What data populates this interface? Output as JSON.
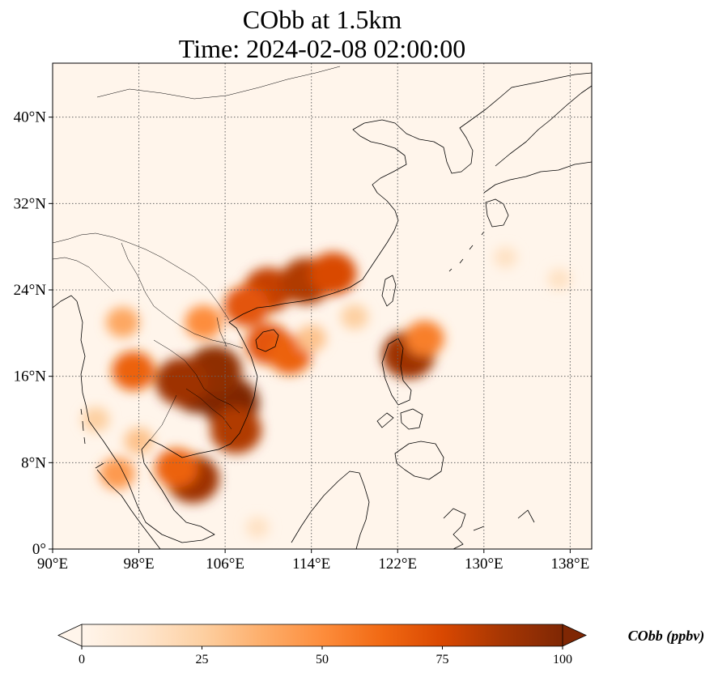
{
  "title": {
    "line1": "CObb at 1.5km",
    "line2": "Time: 2024-02-08 02:00:00"
  },
  "map": {
    "lon_range": [
      90,
      140
    ],
    "lat_range": [
      0,
      45
    ],
    "lon_ticks": [
      {
        "value": 90,
        "label": "90°E"
      },
      {
        "value": 98,
        "label": "98°E"
      },
      {
        "value": 106,
        "label": "106°E"
      },
      {
        "value": 114,
        "label": "114°E"
      },
      {
        "value": 122,
        "label": "122°E"
      },
      {
        "value": 130,
        "label": "130°E"
      },
      {
        "value": 138,
        "label": "138°E"
      }
    ],
    "lat_ticks": [
      {
        "value": 0,
        "label": "0°"
      },
      {
        "value": 8,
        "label": "8°N"
      },
      {
        "value": 16,
        "label": "16°N"
      },
      {
        "value": 24,
        "label": "24°N"
      },
      {
        "value": 32,
        "label": "32°N"
      },
      {
        "value": 40,
        "label": "40°N"
      }
    ],
    "gridlines": true
  },
  "colorbar": {
    "label": "CObb (ppbv)",
    "min": 0,
    "max": 100,
    "extend": "both",
    "ticks": [
      {
        "value": 0,
        "label": "0"
      },
      {
        "value": 25,
        "label": "25"
      },
      {
        "value": 50,
        "label": "50"
      },
      {
        "value": 75,
        "label": "75"
      },
      {
        "value": 100,
        "label": "100"
      }
    ],
    "colormap": [
      "#fff5eb",
      "#fee6ce",
      "#fdd0a2",
      "#fdae6b",
      "#fd8d3c",
      "#f16913",
      "#d94801",
      "#a63603",
      "#7f2704"
    ]
  },
  "plumes": [
    {
      "lon": 103.5,
      "lat": 15.0,
      "value": 100
    },
    {
      "lon": 106.5,
      "lat": 13.5,
      "value": 100
    },
    {
      "lon": 105.0,
      "lat": 16.5,
      "value": 95
    },
    {
      "lon": 102.0,
      "lat": 15.5,
      "value": 90
    },
    {
      "lon": 107.0,
      "lat": 11.0,
      "value": 85
    },
    {
      "lon": 103.0,
      "lat": 6.5,
      "value": 90
    },
    {
      "lon": 101.5,
      "lat": 7.5,
      "value": 65
    },
    {
      "lon": 97.5,
      "lat": 16.5,
      "value": 65
    },
    {
      "lon": 96.0,
      "lat": 7.0,
      "value": 45
    },
    {
      "lon": 98.0,
      "lat": 10.0,
      "value": 30
    },
    {
      "lon": 94.0,
      "lat": 12.0,
      "value": 25
    },
    {
      "lon": 110.0,
      "lat": 24.0,
      "value": 80
    },
    {
      "lon": 113.5,
      "lat": 24.8,
      "value": 85
    },
    {
      "lon": 116.0,
      "lat": 25.5,
      "value": 75
    },
    {
      "lon": 108.0,
      "lat": 22.5,
      "value": 70
    },
    {
      "lon": 110.0,
      "lat": 19.0,
      "value": 70
    },
    {
      "lon": 112.0,
      "lat": 18.0,
      "value": 65
    },
    {
      "lon": 114.0,
      "lat": 19.5,
      "value": 30
    },
    {
      "lon": 123.0,
      "lat": 18.0,
      "value": 90
    },
    {
      "lon": 124.5,
      "lat": 19.5,
      "value": 55
    },
    {
      "lon": 96.5,
      "lat": 21.0,
      "value": 40
    },
    {
      "lon": 104.0,
      "lat": 21.0,
      "value": 50
    },
    {
      "lon": 118.0,
      "lat": 21.5,
      "value": 25
    },
    {
      "lon": 132.0,
      "lat": 27.0,
      "value": 15
    },
    {
      "lon": 137.0,
      "lat": 25.0,
      "value": 15
    },
    {
      "lon": 109.0,
      "lat": 2.0,
      "value": 15
    }
  ]
}
